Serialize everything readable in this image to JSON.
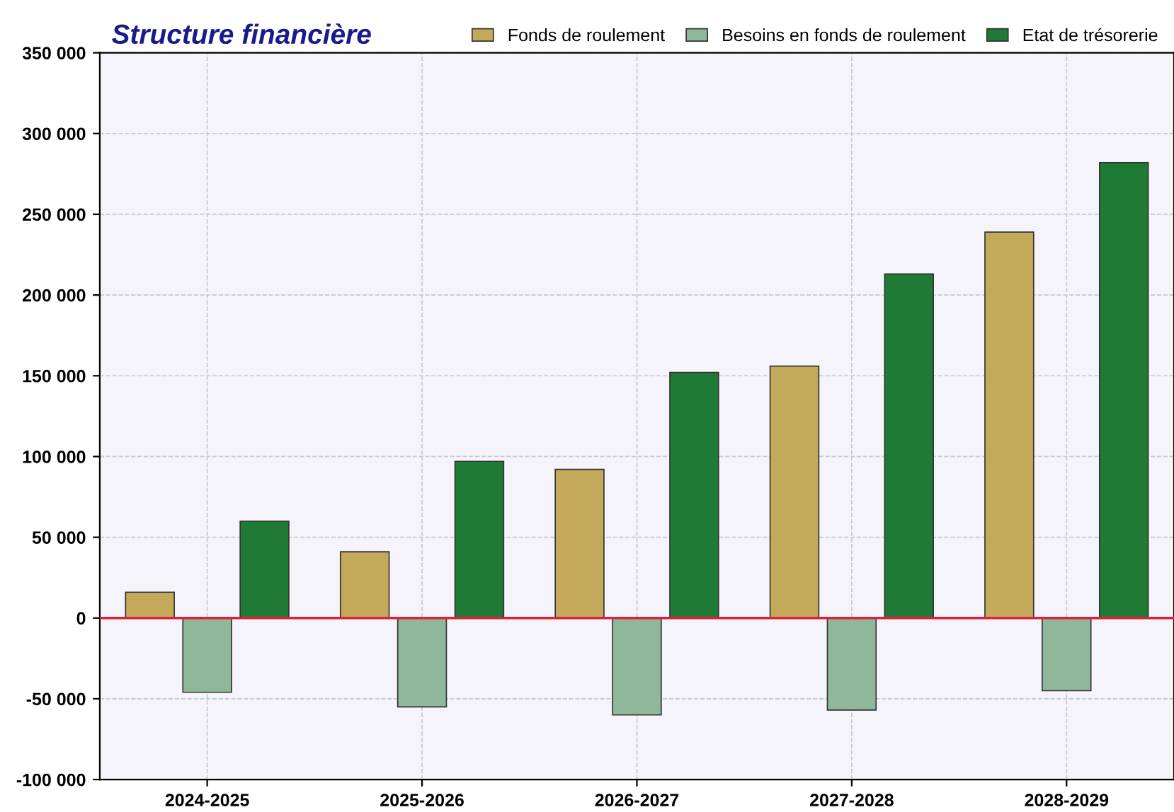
{
  "chart_data": {
    "type": "bar",
    "title": "Structure financière",
    "categories": [
      "2024-2025",
      "2025-2026",
      "2026-2027",
      "2027-2028",
      "2028-2029"
    ],
    "series": [
      {
        "name": "Fonds de roulement",
        "color": "#c4a95a",
        "values": [
          16000,
          41000,
          92000,
          156000,
          239000
        ]
      },
      {
        "name": "Besoins en fonds de roulement",
        "color": "#8fb89a",
        "values": [
          -46000,
          -55000,
          -60000,
          -57000,
          -45000
        ]
      },
      {
        "name": "Etat de trésorerie",
        "color": "#1f7a35",
        "values": [
          60000,
          97000,
          152000,
          213000,
          282000
        ]
      }
    ],
    "ylim": [
      -100000,
      350000
    ],
    "yticks": [
      {
        "value": -100000,
        "label": "-100 000"
      },
      {
        "value": -50000,
        "label": "-50 000"
      },
      0,
      {
        "value": 50000,
        "label": "50 000"
      },
      {
        "value": 100000,
        "label": "100 000"
      },
      {
        "value": 150000,
        "label": "150 000"
      },
      {
        "value": 200000,
        "label": "200 000"
      },
      {
        "value": 250000,
        "label": "250 000"
      },
      {
        "value": 300000,
        "label": "300 000"
      },
      {
        "value": 350000,
        "label": "350 000"
      }
    ],
    "ref_lines": [
      {
        "axis": "y",
        "value": 0,
        "color": "#e0203a"
      }
    ],
    "grid": true,
    "legend": "top right"
  }
}
